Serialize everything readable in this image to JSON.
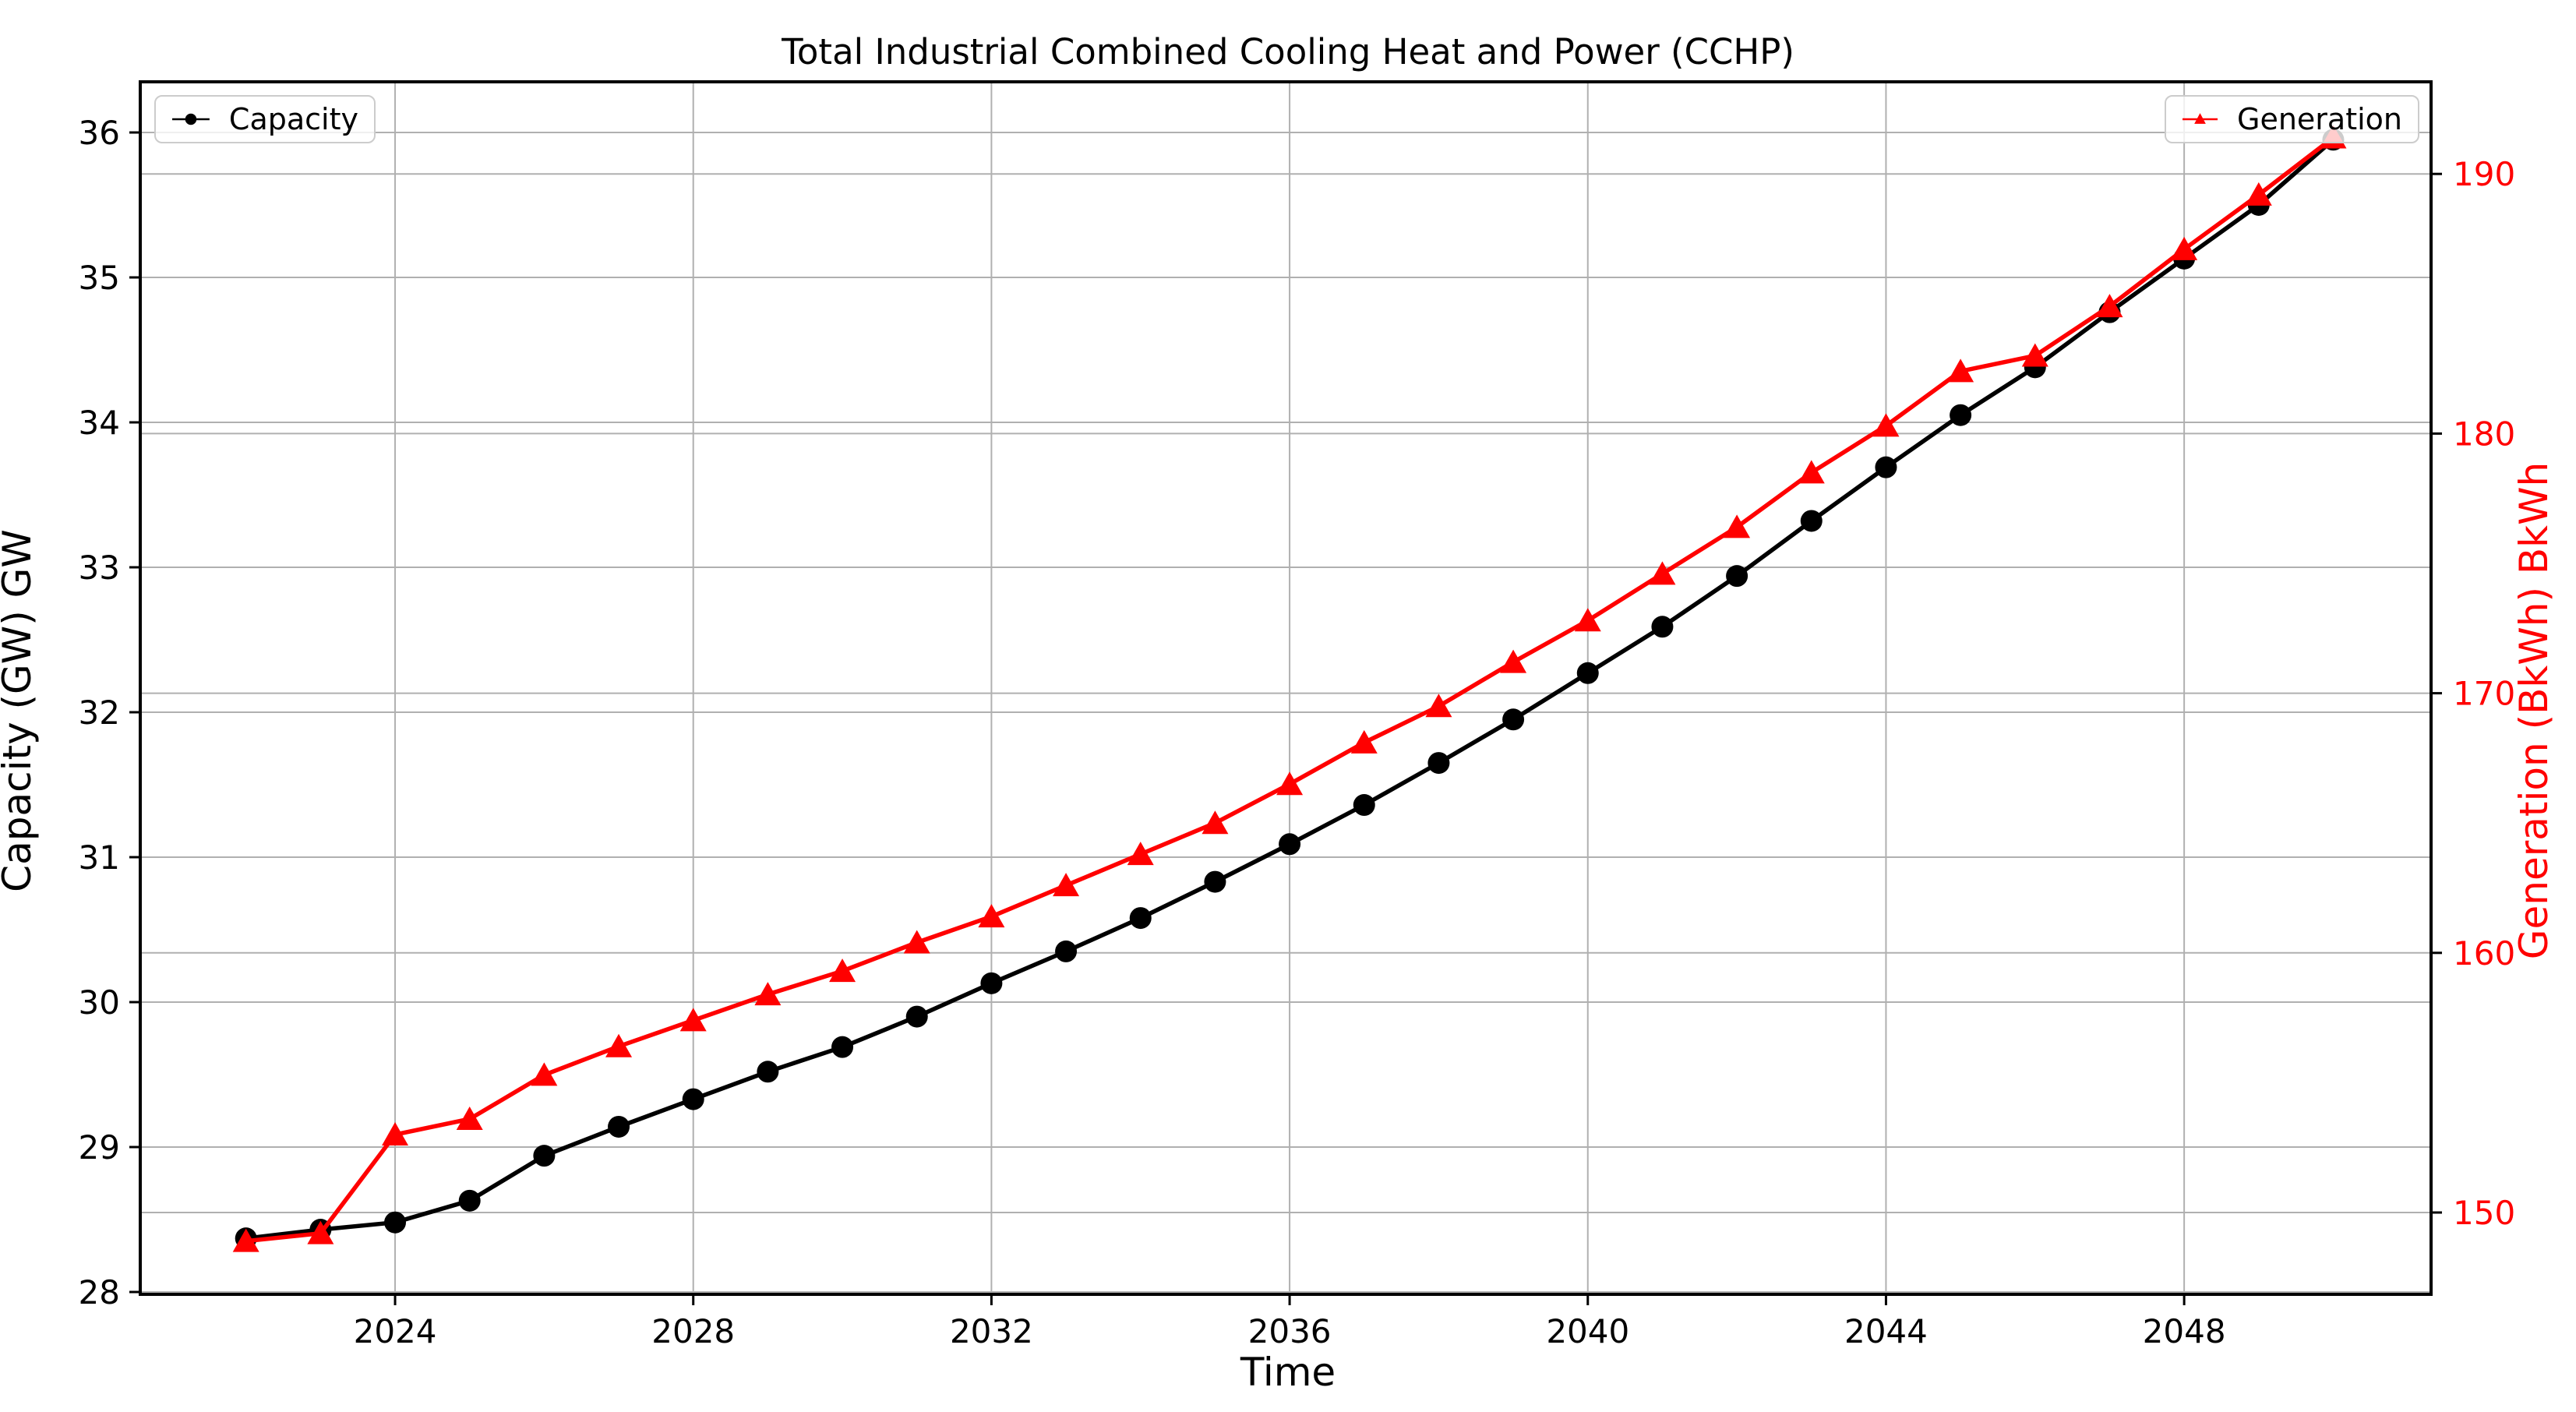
{
  "chart_data": {
    "type": "line",
    "title": "Total Industrial Combined Cooling Heat and Power (CCHP)",
    "xlabel": "Time",
    "ylabel_left": "Capacity (GW) GW",
    "ylabel_right": "Generation (BkWh) BkWh",
    "x": [
      2022,
      2023,
      2024,
      2025,
      2026,
      2027,
      2028,
      2029,
      2030,
      2031,
      2032,
      2033,
      2034,
      2035,
      2036,
      2037,
      2038,
      2039,
      2040,
      2041,
      2042,
      2043,
      2044,
      2045,
      2046,
      2047,
      2048,
      2049,
      2050
    ],
    "x_tick_labels": [
      2024,
      2028,
      2032,
      2036,
      2040,
      2044,
      2048
    ],
    "left_axis": {
      "ticks": [
        28,
        29,
        30,
        31,
        32,
        33,
        34,
        35,
        36
      ],
      "color": "#000000"
    },
    "right_axis": {
      "ticks": [
        150,
        160,
        170,
        180,
        190
      ],
      "color": "#ff0000"
    },
    "grid": true,
    "legend_positions": [
      "upper-left",
      "upper-right"
    ],
    "series": [
      {
        "name": "Capacity",
        "axis": "left",
        "color": "#000000",
        "marker": "circle",
        "values": [
          28.37,
          28.43,
          28.48,
          28.63,
          28.94,
          29.14,
          29.33,
          29.52,
          29.69,
          29.9,
          30.13,
          30.35,
          30.58,
          30.83,
          31.09,
          31.36,
          31.65,
          31.95,
          32.27,
          32.59,
          32.94,
          33.32,
          33.69,
          34.05,
          34.38,
          34.76,
          35.13,
          35.5,
          35.95
        ]
      },
      {
        "name": "Generation",
        "axis": "right",
        "color": "#ff0000",
        "marker": "triangle-up",
        "values": [
          148.9,
          149.2,
          153.0,
          153.6,
          155.3,
          156.4,
          157.4,
          158.4,
          159.3,
          160.4,
          161.4,
          162.6,
          163.8,
          165.0,
          166.5,
          168.1,
          169.5,
          171.2,
          172.8,
          174.6,
          176.4,
          178.5,
          180.3,
          182.4,
          183.0,
          184.9,
          187.1,
          189.2,
          191.4
        ]
      }
    ],
    "style": {
      "grid_color": "#b0b0b0",
      "spine_color": "#000000",
      "background": "#ffffff"
    }
  }
}
